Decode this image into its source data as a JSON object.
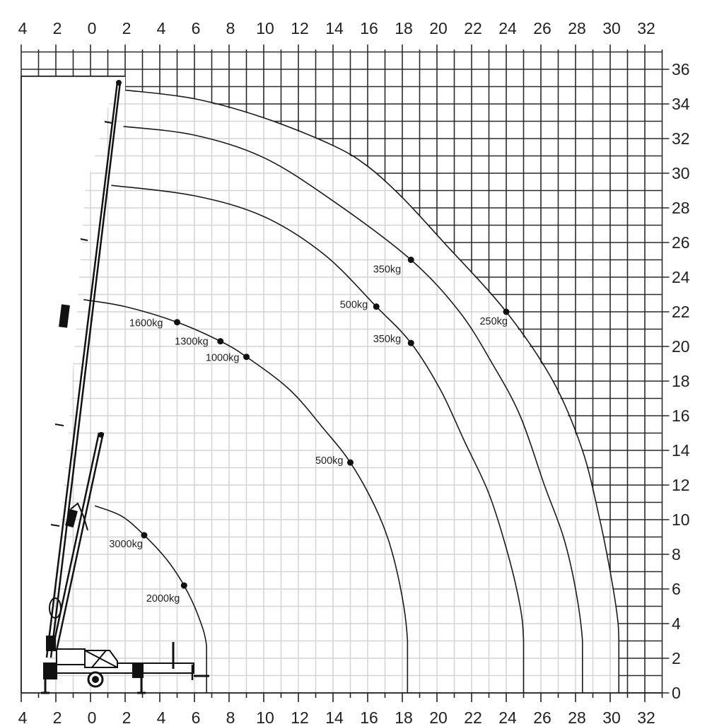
{
  "chart_data": {
    "type": "line",
    "title": "",
    "xlabel": "",
    "ylabel": "",
    "x_tick_labels": [
      "4",
      "2",
      "0",
      "2",
      "4",
      "6",
      "8",
      "10",
      "12",
      "14",
      "16",
      "18",
      "20",
      "22",
      "24",
      "26",
      "28",
      "30",
      "32"
    ],
    "x_tick_values": [
      -4,
      -2,
      0,
      2,
      4,
      6,
      8,
      10,
      12,
      14,
      16,
      18,
      20,
      22,
      24,
      26,
      28,
      30,
      32
    ],
    "y_tick_labels": [
      "0",
      "2",
      "4",
      "6",
      "8",
      "10",
      "12",
      "14",
      "16",
      "18",
      "20",
      "22",
      "24",
      "26",
      "28",
      "30",
      "32",
      "34",
      "36"
    ],
    "y_tick_values": [
      0,
      2,
      4,
      6,
      8,
      10,
      12,
      14,
      16,
      18,
      20,
      22,
      24,
      26,
      28,
      30,
      32,
      34,
      36
    ],
    "xlim": [
      -4,
      33
    ],
    "ylim": [
      0,
      37
    ],
    "grid": true,
    "colors": {
      "line": "#1a1a1a",
      "light_grid": "#d4d4d4",
      "dark_grid": "#2a2a2a"
    },
    "curves": [
      {
        "points": [
          [
            2,
            34.8
          ],
          [
            6,
            34.3
          ],
          [
            10,
            33.2
          ],
          [
            14,
            31.6
          ],
          [
            16,
            30.4
          ],
          [
            18,
            28.6
          ],
          [
            20.4,
            26
          ],
          [
            24,
            22
          ],
          [
            26.7,
            18
          ],
          [
            28.4,
            14
          ],
          [
            29.4,
            10
          ],
          [
            30,
            7
          ],
          [
            30.4,
            4.5
          ],
          [
            30.5,
            3
          ],
          [
            30.5,
            0
          ]
        ]
      },
      {
        "points": [
          [
            1.9,
            32.7
          ],
          [
            6,
            32.2
          ],
          [
            10,
            30.9
          ],
          [
            14,
            28.4
          ],
          [
            18.5,
            25
          ],
          [
            21.3,
            22
          ],
          [
            23.2,
            19
          ],
          [
            24.8,
            16
          ],
          [
            26.2,
            12
          ],
          [
            27.3,
            9
          ],
          [
            28,
            6
          ],
          [
            28.4,
            3
          ],
          [
            28.4,
            0
          ]
        ]
      },
      {
        "points": [
          [
            1.2,
            29.3
          ],
          [
            6,
            28.7
          ],
          [
            10,
            27.5
          ],
          [
            13.5,
            25.3
          ],
          [
            16.5,
            22.3
          ],
          [
            18.5,
            20.2
          ],
          [
            20.2,
            17.5
          ],
          [
            21.6,
            14.5
          ],
          [
            23,
            11.5
          ],
          [
            24.1,
            8
          ],
          [
            24.8,
            5
          ],
          [
            25,
            3
          ],
          [
            25,
            0
          ]
        ]
      },
      {
        "points": [
          [
            -0.4,
            22.7
          ],
          [
            2,
            22.3
          ],
          [
            5,
            21.4
          ],
          [
            7.5,
            20.3
          ],
          [
            9,
            19.4
          ],
          [
            11.5,
            17.5
          ],
          [
            13.5,
            15.2
          ],
          [
            15,
            13.3
          ],
          [
            16.4,
            10.8
          ],
          [
            17.3,
            8.5
          ],
          [
            18,
            5.5
          ],
          [
            18.3,
            3
          ],
          [
            18.3,
            0
          ]
        ]
      },
      {
        "points": [
          [
            0.25,
            10.8
          ],
          [
            1.8,
            10.2
          ],
          [
            3.1,
            9.1
          ],
          [
            4.4,
            7.7
          ],
          [
            5.4,
            6.2
          ],
          [
            6.2,
            4.5
          ],
          [
            6.7,
            2.7
          ],
          [
            6.7,
            0
          ]
        ]
      }
    ],
    "load_points": [
      {
        "label": "350kg",
        "x": 18.5,
        "y": 25
      },
      {
        "label": "250kg",
        "x": 24,
        "y": 22
      },
      {
        "label": "500kg",
        "x": 16.5,
        "y": 22.3
      },
      {
        "label": "350kg",
        "x": 18.5,
        "y": 20.2
      },
      {
        "label": "1600kg",
        "x": 5,
        "y": 21.4
      },
      {
        "label": "1300kg",
        "x": 7.5,
        "y": 20.3
      },
      {
        "label": "1000kg",
        "x": 9,
        "y": 19.4
      },
      {
        "label": "500kg",
        "x": 15,
        "y": 13.3
      },
      {
        "label": "3000kg",
        "x": 3.1,
        "y": 9.1
      },
      {
        "label": "2000kg",
        "x": 5.4,
        "y": 6.2
      }
    ]
  }
}
